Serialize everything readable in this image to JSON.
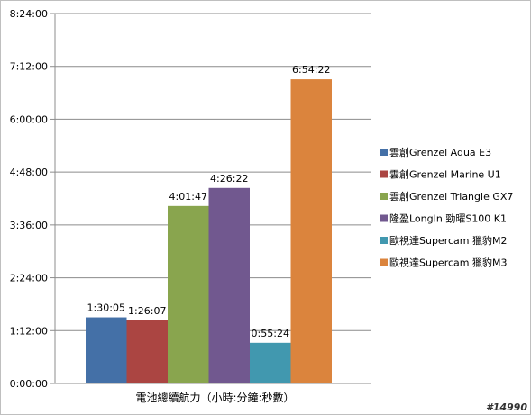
{
  "chart_data": {
    "type": "bar",
    "title": "",
    "xlabel": "電池總續航力（小時:分鐘:秒數）",
    "ylabel": "",
    "ylim_seconds": [
      0,
      30240
    ],
    "y_ticks": [
      "0:00:00",
      "1:12:00",
      "2:24:00",
      "3:36:00",
      "4:48:00",
      "6:00:00",
      "7:12:00",
      "8:24:00"
    ],
    "grid": true,
    "legend_position": "right",
    "series": [
      {
        "name": "雲創Grenzel Aqua E3",
        "value_label": "1:30:05",
        "value_seconds": 5405,
        "color": "#4470a7"
      },
      {
        "name": "雲創Grenzel Marine U1",
        "value_label": "1:26:07",
        "value_seconds": 5167,
        "color": "#ab4542"
      },
      {
        "name": "雲創Grenzel Triangle GX7",
        "value_label": "4:01:47",
        "value_seconds": 14507,
        "color": "#89a54e"
      },
      {
        "name": "隆盈LongIn 勁曜S100 K1",
        "value_label": "4:26:22",
        "value_seconds": 15982,
        "color": "#71588f"
      },
      {
        "name": "歐視達Supercam 獵豹M2",
        "value_label": "0:55:24",
        "value_seconds": 3324,
        "color": "#4198af"
      },
      {
        "name": "歐視達Supercam 獵豹M3",
        "value_label": "6:54:22",
        "value_seconds": 24862,
        "color": "#db843d"
      }
    ]
  },
  "watermark": "#14990"
}
